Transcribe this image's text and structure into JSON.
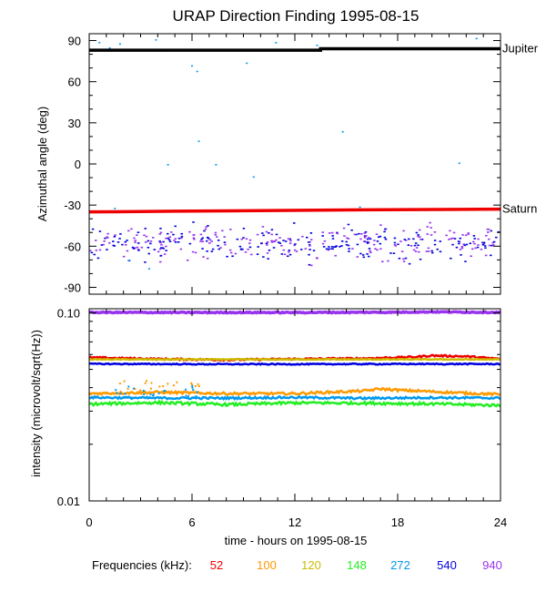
{
  "chart_data": [
    {
      "type": "scatter",
      "title": "URAP Direction Finding  1995-08-15",
      "ylabel": "Azimuthal angle (deg)",
      "xlim": [
        0,
        24
      ],
      "ylim": [
        -95,
        95
      ],
      "yticks": [
        90,
        60,
        30,
        0,
        -30,
        -60,
        -90
      ],
      "reference_lines": [
        {
          "name": "Jupiter",
          "color": "#000000",
          "x": [
            0,
            13.5,
            13.5,
            24
          ],
          "y": [
            83,
            83,
            84,
            84
          ]
        },
        {
          "name": "Saturn",
          "color": "#ee0000",
          "x": [
            0,
            5,
            16,
            24
          ],
          "y": [
            -35,
            -34.5,
            -33.5,
            -33
          ]
        }
      ],
      "scatter_band": {
        "description_series": [
          "540",
          "940"
        ],
        "colors": [
          "#0000dd",
          "#9933ee"
        ],
        "y_center": -57,
        "y_spread": 11,
        "count": 420
      },
      "outliers_272kHz": {
        "color": "#0099ee",
        "x": [
          1.2,
          1.8,
          3.9,
          4.4,
          6.0,
          6.2,
          6.4,
          7.4,
          9.2,
          9.6,
          10.9,
          13.3,
          14.8,
          15.8,
          21.6,
          22.6,
          3.5,
          4.6,
          1.5,
          6.3,
          2.3,
          0.6
        ],
        "y": [
          85,
          88,
          91,
          83,
          72,
          84,
          17,
          0,
          74,
          -9,
          89,
          87,
          24,
          -31,
          1,
          92,
          -76,
          0,
          -32,
          68,
          -70,
          89
        ]
      }
    },
    {
      "type": "line",
      "ylabel": "intensity (microvolt/sqrt(Hz))",
      "xlabel": "time - hours on 1995-08-15",
      "xlim": [
        0,
        24
      ],
      "xticks": [
        0,
        6,
        12,
        18,
        24
      ],
      "ylim": [
        0.01,
        0.105
      ],
      "yscale": "log",
      "yticks": [
        "0.10",
        "0.01"
      ],
      "series": [
        {
          "name": "52",
          "color": "#ee0000",
          "x": [
            0,
            4,
            8,
            12,
            16,
            19,
            20,
            22,
            24
          ],
          "values": [
            0.0578,
            0.0568,
            0.0562,
            0.0568,
            0.0572,
            0.0582,
            0.0592,
            0.0586,
            0.0568
          ]
        },
        {
          "name": "100",
          "color": "#ff9900",
          "x": [
            0,
            4,
            8,
            12,
            16,
            17,
            18,
            22,
            24
          ],
          "values": [
            0.0372,
            0.0378,
            0.0372,
            0.0372,
            0.0384,
            0.0394,
            0.0388,
            0.0374,
            0.0368
          ]
        },
        {
          "name": "120",
          "color": "#ccbb00",
          "x": [
            0,
            24
          ],
          "values": [
            0.0565,
            0.0565
          ]
        },
        {
          "name": "148",
          "color": "#22ee22",
          "x": [
            0,
            4,
            8,
            12,
            16,
            20,
            24
          ],
          "values": [
            0.0327,
            0.0333,
            0.0325,
            0.0332,
            0.0331,
            0.0328,
            0.0322
          ]
        },
        {
          "name": "272",
          "color": "#0099ee",
          "x": [
            0,
            4,
            8,
            12,
            16,
            20,
            24
          ],
          "values": [
            0.0355,
            0.0352,
            0.0352,
            0.0355,
            0.0351,
            0.0354,
            0.0352
          ]
        },
        {
          "name": "540",
          "color": "#0000dd",
          "x": [
            0,
            6,
            12,
            18,
            24
          ],
          "values": [
            0.0535,
            0.0533,
            0.0533,
            0.0534,
            0.0534
          ]
        },
        {
          "name": "940",
          "color": "#9933ee",
          "x": [
            0,
            6,
            12,
            18,
            20,
            24
          ],
          "values": [
            0.1004,
            0.1003,
            0.1003,
            0.1006,
            0.1011,
            0.1004
          ]
        }
      ]
    }
  ],
  "legend": {
    "label": "Frequencies (kHz):",
    "items": [
      {
        "text": "52",
        "color": "#ee0000"
      },
      {
        "text": "100",
        "color": "#ff9900"
      },
      {
        "text": "120",
        "color": "#ccbb00"
      },
      {
        "text": "148",
        "color": "#22ee22"
      },
      {
        "text": "272",
        "color": "#0099ee"
      },
      {
        "text": "540",
        "color": "#0000dd"
      },
      {
        "text": "940",
        "color": "#9933ee"
      }
    ]
  }
}
